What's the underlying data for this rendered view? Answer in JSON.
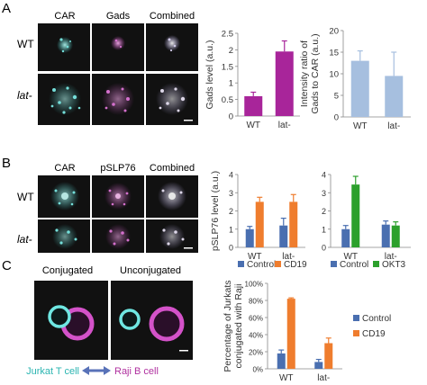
{
  "colors": {
    "magenta": "#a8259a",
    "lightblue": "#a6bfdf",
    "blue": "#4a6fb0",
    "orange": "#ef7d2e",
    "green": "#2ca02c",
    "cyan": "#45d3d0",
    "pink": "#cf4ec6",
    "arrow": "#5872b8"
  },
  "panels": {
    "a": {
      "letter": "A",
      "columns": [
        "CAR",
        "Gads",
        "Combined"
      ],
      "rows": [
        "WT",
        "lat-"
      ]
    },
    "b": {
      "letter": "B",
      "columns": [
        "CAR",
        "pSLP76",
        "Combined"
      ],
      "rows": [
        "WT",
        "lat-"
      ]
    },
    "c": {
      "letter": "C",
      "columns": [
        "Conjugated",
        "Unconjugated"
      ],
      "legend_left": "Jurkat T cell",
      "legend_right": "Raji B cell"
    }
  },
  "chart_data": [
    {
      "id": "a1",
      "type": "bar",
      "categories": [
        "WT",
        "lat-"
      ],
      "series": [
        {
          "values": [
            0.6,
            1.95
          ],
          "errors": [
            0.12,
            0.32
          ],
          "color": "#a8259a"
        }
      ],
      "ylabel": "Gads level (a.u.)",
      "ylim": [
        0,
        2.5
      ],
      "yticks": [
        "0",
        "0.5",
        "1",
        "1.5",
        "2",
        "2.5"
      ]
    },
    {
      "id": "a2",
      "type": "bar",
      "categories": [
        "WT",
        "lat-"
      ],
      "series": [
        {
          "values": [
            13,
            9.5
          ],
          "errors": [
            2.3,
            5.5
          ],
          "color": "#a6bfdf"
        }
      ],
      "ylabel": "Intensity ratio of Gads to CAR (a.u.)",
      "ylabel_lines": [
        "Intensity ratio of",
        "Gads to CAR (a.u.)"
      ],
      "ylim": [
        0,
        20
      ],
      "yticks": [
        "0",
        "5",
        "10",
        "15",
        "20"
      ]
    },
    {
      "id": "b1",
      "type": "bar",
      "categories": [
        "WT",
        "lat-"
      ],
      "series": [
        {
          "name": "Control",
          "values": [
            1.0,
            1.2
          ],
          "errors": [
            0.15,
            0.4
          ],
          "color": "#4a6fb0"
        },
        {
          "name": "CD19",
          "values": [
            2.5,
            2.5
          ],
          "errors": [
            0.25,
            0.4
          ],
          "color": "#ef7d2e"
        }
      ],
      "ylabel": "pSLP76 level (a.u.)",
      "ylim": [
        0,
        4
      ],
      "yticks": [
        "0",
        "1",
        "2",
        "3",
        "4"
      ],
      "legend": [
        "Control",
        "CD19"
      ]
    },
    {
      "id": "b2",
      "type": "bar",
      "categories": [
        "WT",
        "lat-"
      ],
      "series": [
        {
          "name": "Control",
          "values": [
            1.0,
            1.25
          ],
          "errors": [
            0.2,
            0.2
          ],
          "color": "#4a6fb0"
        },
        {
          "name": "OKT3",
          "values": [
            3.45,
            1.2
          ],
          "errors": [
            0.45,
            0.2
          ],
          "color": "#2ca02c"
        }
      ],
      "ylim": [
        0,
        4
      ],
      "yticks": [
        "0",
        "1",
        "2",
        "3",
        "4"
      ],
      "legend": [
        "Control",
        "OKT3"
      ]
    },
    {
      "id": "c1",
      "type": "bar",
      "categories": [
        "WT",
        "lat-"
      ],
      "series": [
        {
          "name": "Control",
          "values": [
            18,
            8
          ],
          "errors": [
            4,
            3
          ],
          "color": "#4a6fb0"
        },
        {
          "name": "CD19",
          "values": [
            82,
            30
          ],
          "errors": [
            1,
            6
          ],
          "color": "#ef7d2e"
        }
      ],
      "ylabel": "Percentage of Jurkats conjugated with Raji",
      "ylabel_lines": [
        "Percentage of Jurkats",
        "conjugated with Raji"
      ],
      "ylim": [
        0,
        100
      ],
      "yticks": [
        "0%",
        "20%",
        "40%",
        "60%",
        "80%",
        "100%"
      ],
      "legend": [
        "Control",
        "CD19"
      ]
    }
  ]
}
